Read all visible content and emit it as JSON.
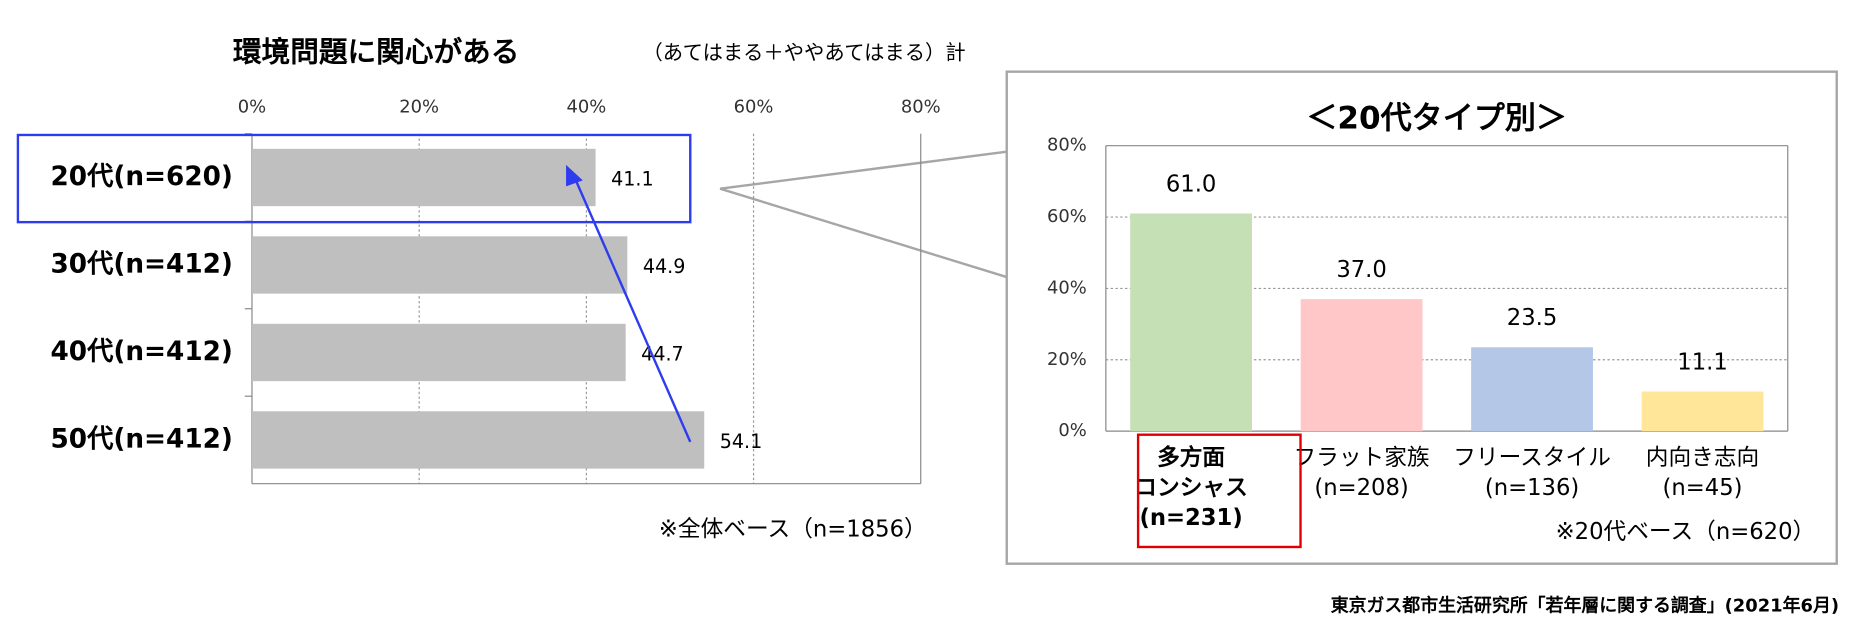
{
  "chart_data": [
    {
      "type": "bar",
      "orientation": "horizontal",
      "title": "環境問題に関心がある",
      "subtitle": "（あてはまる＋ややあてはまる）計",
      "categories": [
        "20代(n=620)",
        "30代(n=412)",
        "40代(n=412)",
        "50代(n=412)"
      ],
      "values": [
        41.1,
        44.9,
        44.7,
        54.1
      ],
      "color": "#bfbfbf",
      "xlim": [
        0,
        80
      ],
      "xticks": [
        {
          "value": 0,
          "label": "0%"
        },
        {
          "value": 20,
          "label": "20%"
        },
        {
          "value": 40,
          "label": "40%"
        },
        {
          "value": 60,
          "label": "60%"
        },
        {
          "value": 80,
          "label": "80%"
        }
      ],
      "grid": true,
      "note": "※全体ベース（n=1856）"
    },
    {
      "type": "bar",
      "orientation": "vertical",
      "title": "＜20代タイプ別＞",
      "categories": [
        [
          "多方面",
          "コンシャス",
          "(n=231)"
        ],
        [
          "フラット家族",
          "(n=208)"
        ],
        [
          "フリースタイル",
          "(n=136)"
        ],
        [
          "内向き志向",
          "(n=45)"
        ]
      ],
      "values": [
        61.0,
        37.0,
        23.5,
        11.1
      ],
      "value_labels": [
        "61.0",
        "37.0",
        "23.5",
        "11.1"
      ],
      "colors": [
        "#c5e0b4",
        "#ffc7c7",
        "#b4c7e7",
        "#ffe699"
      ],
      "ylim": [
        0,
        80
      ],
      "yticks": [
        {
          "value": 0,
          "label": "0%"
        },
        {
          "value": 20,
          "label": "20%"
        },
        {
          "value": 40,
          "label": "40%"
        },
        {
          "value": 60,
          "label": "60%"
        },
        {
          "value": 80,
          "label": "80%"
        }
      ],
      "grid": true,
      "note": "※20代ベース（n=620）"
    }
  ],
  "source": "東京ガス都市生活研究所「若年層に関する調査」(2021年6月)"
}
